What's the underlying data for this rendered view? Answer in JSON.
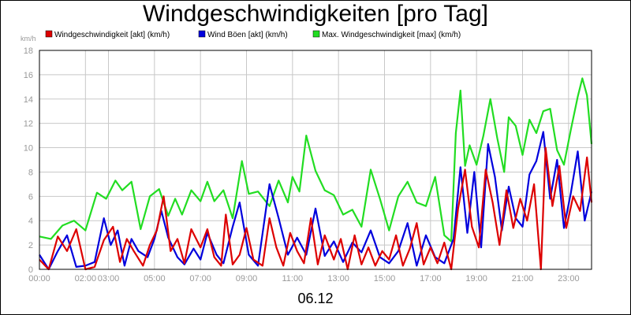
{
  "chart_data": {
    "type": "line",
    "title": "Windgeschwindigkeiten [pro Tag]",
    "ylabel": "km/h",
    "xlabel": "06.12",
    "ylim": [
      0,
      18
    ],
    "xlim": [
      0,
      24
    ],
    "grid": true,
    "legend_position": "top",
    "y_ticks": [
      "0",
      "2",
      "4",
      "6",
      "8",
      "10",
      "12",
      "14",
      "16",
      "18"
    ],
    "x_ticks": [
      {
        "x": 0,
        "label": "00:00"
      },
      {
        "x": 2,
        "label": "02:00"
      },
      {
        "x": 3,
        "label": "03:00"
      },
      {
        "x": 5,
        "label": "05:00"
      },
      {
        "x": 7,
        "label": "07:00"
      },
      {
        "x": 9,
        "label": "09:00"
      },
      {
        "x": 11,
        "label": "11:00"
      },
      {
        "x": 13,
        "label": "13:00"
      },
      {
        "x": 15,
        "label": "15:00"
      },
      {
        "x": 17,
        "label": "17:00"
      },
      {
        "x": 19,
        "label": "19:00"
      },
      {
        "x": 21,
        "label": "21:00"
      },
      {
        "x": 23,
        "label": "23:00"
      }
    ],
    "series": [
      {
        "name": "Max. Windgeschwindigkeit [max] (km/h)",
        "color": "#22dd22",
        "points": [
          [
            0,
            2.7
          ],
          [
            0.5,
            2.5
          ],
          [
            1,
            3.6
          ],
          [
            1.5,
            4.0
          ],
          [
            2,
            3.2
          ],
          [
            2.5,
            6.3
          ],
          [
            2.9,
            5.8
          ],
          [
            3.3,
            7.3
          ],
          [
            3.6,
            6.5
          ],
          [
            4.0,
            7.2
          ],
          [
            4.4,
            3.3
          ],
          [
            4.8,
            6.0
          ],
          [
            5.2,
            6.6
          ],
          [
            5.6,
            4.4
          ],
          [
            5.9,
            5.8
          ],
          [
            6.2,
            4.5
          ],
          [
            6.6,
            6.5
          ],
          [
            7.0,
            5.6
          ],
          [
            7.3,
            7.2
          ],
          [
            7.6,
            5.6
          ],
          [
            8.0,
            6.5
          ],
          [
            8.4,
            4.2
          ],
          [
            8.8,
            8.9
          ],
          [
            9.1,
            6.2
          ],
          [
            9.5,
            6.4
          ],
          [
            10.0,
            5.2
          ],
          [
            10.4,
            7.3
          ],
          [
            10.8,
            5.5
          ],
          [
            11.0,
            7.6
          ],
          [
            11.3,
            6.4
          ],
          [
            11.6,
            11.0
          ],
          [
            12.0,
            8.1
          ],
          [
            12.4,
            6.5
          ],
          [
            12.8,
            6.1
          ],
          [
            13.2,
            4.5
          ],
          [
            13.6,
            4.9
          ],
          [
            14.0,
            3.5
          ],
          [
            14.4,
            8.2
          ],
          [
            14.8,
            5.8
          ],
          [
            15.2,
            3.2
          ],
          [
            15.6,
            6.0
          ],
          [
            16.0,
            7.2
          ],
          [
            16.4,
            5.5
          ],
          [
            16.8,
            5.2
          ],
          [
            17.2,
            7.6
          ],
          [
            17.6,
            2.8
          ],
          [
            17.9,
            2.3
          ],
          [
            18.1,
            11.2
          ],
          [
            18.3,
            14.7
          ],
          [
            18.5,
            8.5
          ],
          [
            18.7,
            10.2
          ],
          [
            19.0,
            8.6
          ],
          [
            19.3,
            11.0
          ],
          [
            19.6,
            14.0
          ],
          [
            19.9,
            10.8
          ],
          [
            20.2,
            8.0
          ],
          [
            20.4,
            12.5
          ],
          [
            20.7,
            11.8
          ],
          [
            21.0,
            9.4
          ],
          [
            21.3,
            12.3
          ],
          [
            21.6,
            11.2
          ],
          [
            21.9,
            13.0
          ],
          [
            22.2,
            13.2
          ],
          [
            22.5,
            9.8
          ],
          [
            22.8,
            8.6
          ],
          [
            23.1,
            11.5
          ],
          [
            23.4,
            14.2
          ],
          [
            23.6,
            15.7
          ],
          [
            23.8,
            14.3
          ],
          [
            24.0,
            10.3
          ]
        ]
      },
      {
        "name": "Wind Böen [akt] (km/h)",
        "color": "#0000dd",
        "points": [
          [
            0,
            1.2
          ],
          [
            0.4,
            0
          ],
          [
            0.8,
            1.5
          ],
          [
            1.2,
            2.8
          ],
          [
            1.6,
            0.2
          ],
          [
            2.0,
            0.3
          ],
          [
            2.4,
            0.6
          ],
          [
            2.8,
            4.2
          ],
          [
            3.1,
            2.0
          ],
          [
            3.4,
            3.2
          ],
          [
            3.7,
            0.3
          ],
          [
            4.0,
            2.5
          ],
          [
            4.3,
            1.5
          ],
          [
            4.7,
            1.0
          ],
          [
            5.0,
            2.5
          ],
          [
            5.3,
            4.8
          ],
          [
            5.6,
            2.6
          ],
          [
            6.0,
            1.0
          ],
          [
            6.3,
            0.4
          ],
          [
            6.7,
            1.7
          ],
          [
            7.0,
            0.8
          ],
          [
            7.3,
            3.0
          ],
          [
            7.7,
            1.2
          ],
          [
            8.0,
            0.5
          ],
          [
            8.4,
            3.5
          ],
          [
            8.7,
            5.5
          ],
          [
            9.1,
            1.2
          ],
          [
            9.5,
            0.3
          ],
          [
            10.0,
            7.0
          ],
          [
            10.4,
            4.2
          ],
          [
            10.8,
            1.2
          ],
          [
            11.2,
            2.6
          ],
          [
            11.6,
            1.2
          ],
          [
            12.0,
            5.0
          ],
          [
            12.4,
            1.1
          ],
          [
            12.8,
            2.3
          ],
          [
            13.2,
            0.6
          ],
          [
            13.6,
            2.2
          ],
          [
            14.0,
            1.4
          ],
          [
            14.4,
            3.2
          ],
          [
            14.8,
            1.0
          ],
          [
            15.2,
            0.5
          ],
          [
            15.6,
            1.5
          ],
          [
            16.0,
            3.8
          ],
          [
            16.4,
            0.3
          ],
          [
            16.8,
            2.8
          ],
          [
            17.2,
            1.0
          ],
          [
            17.6,
            0.5
          ],
          [
            18.0,
            2.5
          ],
          [
            18.3,
            8.4
          ],
          [
            18.6,
            3.0
          ],
          [
            18.9,
            8.0
          ],
          [
            19.2,
            1.8
          ],
          [
            19.5,
            10.3
          ],
          [
            19.8,
            7.6
          ],
          [
            20.1,
            3.2
          ],
          [
            20.4,
            6.8
          ],
          [
            20.7,
            4.2
          ],
          [
            21.0,
            3.5
          ],
          [
            21.3,
            7.8
          ],
          [
            21.6,
            8.9
          ],
          [
            21.9,
            11.3
          ],
          [
            22.2,
            5.8
          ],
          [
            22.5,
            9.0
          ],
          [
            22.8,
            3.4
          ],
          [
            23.1,
            6.3
          ],
          [
            23.4,
            9.7
          ],
          [
            23.7,
            4.0
          ],
          [
            24.0,
            6.4
          ]
        ]
      },
      {
        "name": "Windgeschwindigkeit [akt] (km/h)",
        "color": "#dd0000",
        "points": [
          [
            0,
            0.8
          ],
          [
            0.4,
            0
          ],
          [
            0.8,
            2.7
          ],
          [
            1.2,
            1.5
          ],
          [
            1.6,
            3.3
          ],
          [
            2.0,
            0
          ],
          [
            2.4,
            0.2
          ],
          [
            2.8,
            2.4
          ],
          [
            3.2,
            3.5
          ],
          [
            3.5,
            0.6
          ],
          [
            3.8,
            2.5
          ],
          [
            4.1,
            1.5
          ],
          [
            4.5,
            0.3
          ],
          [
            4.8,
            2.0
          ],
          [
            5.1,
            3.2
          ],
          [
            5.4,
            6.0
          ],
          [
            5.7,
            1.5
          ],
          [
            6.0,
            2.5
          ],
          [
            6.3,
            0.5
          ],
          [
            6.6,
            3.3
          ],
          [
            7.0,
            1.8
          ],
          [
            7.3,
            3.3
          ],
          [
            7.6,
            1.0
          ],
          [
            7.9,
            0.3
          ],
          [
            8.1,
            4.5
          ],
          [
            8.4,
            0.4
          ],
          [
            8.7,
            1.2
          ],
          [
            9.0,
            3.4
          ],
          [
            9.3,
            0.8
          ],
          [
            9.7,
            0.3
          ],
          [
            10.0,
            4.2
          ],
          [
            10.3,
            1.8
          ],
          [
            10.6,
            0.3
          ],
          [
            10.9,
            3.0
          ],
          [
            11.2,
            1.5
          ],
          [
            11.5,
            0.5
          ],
          [
            11.8,
            4.2
          ],
          [
            12.1,
            0.4
          ],
          [
            12.4,
            2.8
          ],
          [
            12.8,
            0.8
          ],
          [
            13.1,
            2.5
          ],
          [
            13.4,
            0
          ],
          [
            13.7,
            2.8
          ],
          [
            14.0,
            0.4
          ],
          [
            14.3,
            1.8
          ],
          [
            14.6,
            0.3
          ],
          [
            14.9,
            1.5
          ],
          [
            15.2,
            0.8
          ],
          [
            15.5,
            2.8
          ],
          [
            15.8,
            0.3
          ],
          [
            16.1,
            1.7
          ],
          [
            16.4,
            3.8
          ],
          [
            16.7,
            0.4
          ],
          [
            17.0,
            1.8
          ],
          [
            17.3,
            0.5
          ],
          [
            17.6,
            2.2
          ],
          [
            17.9,
            0
          ],
          [
            18.2,
            5.0
          ],
          [
            18.5,
            8.2
          ],
          [
            18.8,
            3.5
          ],
          [
            19.1,
            1.8
          ],
          [
            19.4,
            8.2
          ],
          [
            19.7,
            5.5
          ],
          [
            20.0,
            2.0
          ],
          [
            20.3,
            6.5
          ],
          [
            20.6,
            3.4
          ],
          [
            20.9,
            5.8
          ],
          [
            21.2,
            4.0
          ],
          [
            21.5,
            7.0
          ],
          [
            21.8,
            0
          ],
          [
            22.0,
            10.0
          ],
          [
            22.3,
            5.2
          ],
          [
            22.6,
            8.5
          ],
          [
            22.9,
            3.4
          ],
          [
            23.2,
            6.0
          ],
          [
            23.5,
            4.8
          ],
          [
            23.8,
            9.2
          ],
          [
            24.0,
            5.5
          ]
        ]
      }
    ],
    "legend": [
      {
        "label": "Windgeschwindigkeit [akt] (km/h)",
        "color": "#dd0000"
      },
      {
        "label": "Wind Böen [akt] (km/h)",
        "color": "#0000dd"
      },
      {
        "label": "Max. Windgeschwindigkeit [max] (km/h)",
        "color": "#22dd22"
      }
    ]
  }
}
